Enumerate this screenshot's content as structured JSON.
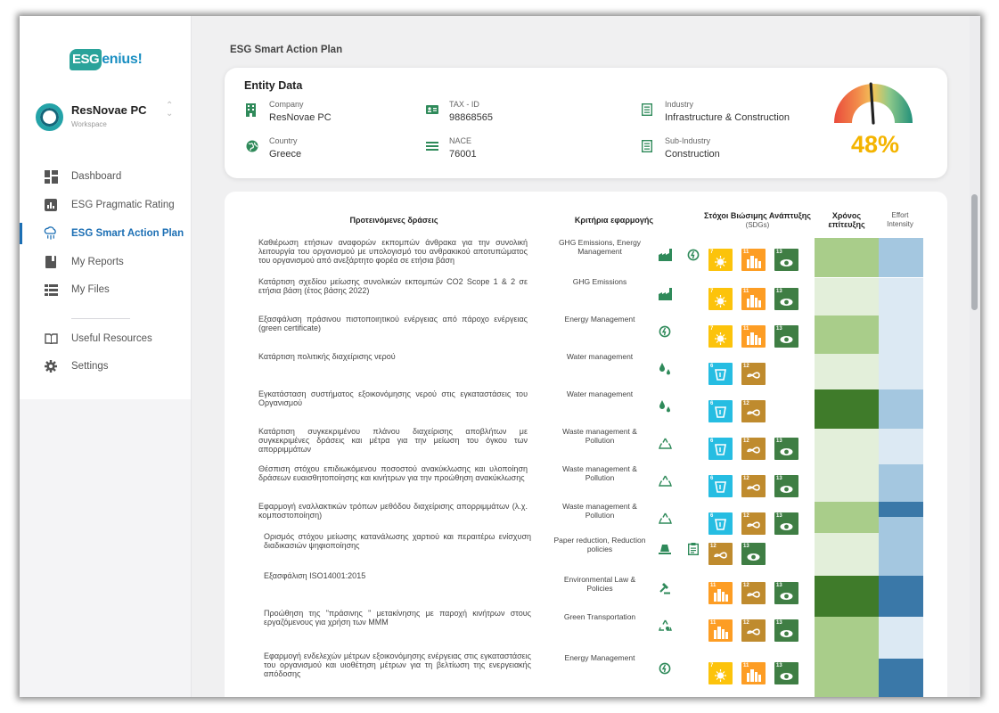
{
  "brand": {
    "logo_badge": "ESG",
    "logo_rest": "enius!"
  },
  "workspace": {
    "name": "ResNovae PC",
    "sub": "Workspace"
  },
  "nav": [
    {
      "label": "Dashboard",
      "icon": "dashboard-icon"
    },
    {
      "label": "ESG Pragmatic Rating",
      "icon": "bar-chart-icon"
    },
    {
      "label": "ESG Smart Action Plan",
      "icon": "cloud-plan-icon",
      "active": true
    },
    {
      "label": "My Reports",
      "icon": "report-icon"
    },
    {
      "label": "My Files",
      "icon": "files-icon"
    },
    {
      "label": "Useful Resources",
      "icon": "book-icon"
    },
    {
      "label": "Settings",
      "icon": "gear-icon"
    }
  ],
  "page_title": "ESG Smart Action Plan",
  "entity": {
    "title": "Entity Data",
    "fields": [
      {
        "key": "Company",
        "value": "ResNovae PC",
        "icon": "building-icon"
      },
      {
        "key": "TAX - ID",
        "value": "98868565",
        "icon": "id-card-icon"
      },
      {
        "key": "Industry",
        "value": "Infrastructure & Construction",
        "icon": "list-icon"
      },
      {
        "key": "Country",
        "value": "Greece",
        "icon": "globe-icon"
      },
      {
        "key": "NACE",
        "value": "76001",
        "icon": "menu-icon"
      },
      {
        "key": "Sub-Industry",
        "value": "Construction",
        "icon": "list-icon"
      }
    ],
    "score_percent": "48%",
    "score_value": 48
  },
  "table": {
    "headers": {
      "actions": "Προτεινόμενες δράσεις",
      "criteria": "Κριτήρια εφαρμογής",
      "sdgs": "Στόχοι Βιώσιμης Ανάπτυξης",
      "sdgs_sub": "(SDGs)",
      "time": "Χρόνος επίτευξης",
      "effort": "Effort Intensity"
    },
    "rows": [
      {
        "action": "Καθιέρωση ετήσιων αναφορών εκπομπών άνθρακα για την συνολική λειτουργία του οργανισμού με υπολογισμό του ανθρακικού αποτυπώματος του οργανισμού από ανεξάρτητο φορέα σε ετήσια βάση",
        "criteria": "GHG Emissions, Energy Management",
        "icons": [
          "factory-icon",
          "energy-icon"
        ],
        "sdgs": [
          7,
          11,
          13
        ],
        "time_color": "#a9cd8a",
        "effort_color": "#a4c7e0"
      },
      {
        "action": "Κατάρτιση σχεδίου μείωσης συνολικών εκπομπών CO2 Scope 1 & 2 σε ετήσια βάση (έτος βάσης 2022)",
        "criteria": "GHG Emissions",
        "icons": [
          "factory-icon"
        ],
        "sdgs": [
          7,
          11,
          13
        ],
        "time_color": "#e3efda",
        "effort_color": "#dce9f3"
      },
      {
        "action": "Εξασφάλιση πράσινου πιστοποιητικού ενέργειας από πάροχο ενέργειας (green certificate)",
        "criteria": "Energy Management",
        "icons": [
          "energy-icon"
        ],
        "sdgs": [
          7,
          11,
          13
        ],
        "time_color": "#a9cd8a",
        "effort_color": "#dce9f3"
      },
      {
        "action": "Κατάρτιση πολιτικής διαχείρισης νερού",
        "criteria": "Water management",
        "icons": [
          "water-icon"
        ],
        "sdgs": [
          6,
          12
        ],
        "time_color": "#e3efda",
        "effort_color": "#dce9f3"
      },
      {
        "action": "Εγκατάσταση συστήματος εξοικονόμησης νερού στις εγκαταστάσεις του Οργανισμού",
        "criteria": "Water management",
        "icons": [
          "water-icon"
        ],
        "sdgs": [
          6,
          12
        ],
        "time_color": "#3f7b2a",
        "effort_color": "#a4c7e0"
      },
      {
        "action": "Κατάρτιση συγκεκριμένου πλάνου διαχείρισης αποβλήτων με συγκεκριμένες δράσεις και μέτρα για την μείωση του όγκου των απορριμμάτων",
        "criteria": "Waste management & Pollution",
        "icons": [
          "recycle-icon"
        ],
        "sdgs": [
          6,
          12,
          13
        ],
        "time_color": "#e3efda",
        "effort_color": "#dce9f3"
      },
      {
        "action": "Θέσπιση στόχου επιδιωκόμενου ποσοστού ανακύκλωσης και υλοποίηση δράσεων ευαισθητοποίησης και κινήτρων για την προώθηση ανακύκλωσης",
        "criteria": "Waste management & Pollution",
        "icons": [
          "recycle-icon"
        ],
        "sdgs": [
          6,
          12,
          13
        ],
        "time_color": "#e3efda",
        "effort_color": "#a4c7e0"
      },
      {
        "action": "Εφαρμογή εναλλακτικών τρόπων μεθόδου διαχείρισης απορριμμάτων (λ.χ. κομποστοποίηση)",
        "criteria": "Waste management & Pollution",
        "icons": [
          "recycle-icon"
        ],
        "sdgs": [
          6,
          12,
          13
        ],
        "time_color": "#a9cd8a",
        "effort_color": "#3a78a8"
      },
      {
        "action": "Ορισμός στόχου μείωσης κατανάλωσης χαρτιού και περαιτέρω ενίσχυση διαδικασιών ψηφιοποίησης",
        "criteria": "Paper reduction, Reduction policies",
        "icons": [
          "tree-icon",
          "clipboard-icon"
        ],
        "sdgs": [
          12,
          13
        ],
        "time_color": "#e3efda",
        "effort_color": "#a4c7e0"
      },
      {
        "action": "Εξασφάλιση ISO14001:2015",
        "criteria": "Environmental Law & Policies",
        "icons": [
          "gavel-icon"
        ],
        "sdgs": [
          11,
          12,
          13
        ],
        "time_color": "#3f7b2a",
        "effort_color": "#3a78a8"
      },
      {
        "action": "Προώθηση της \"πράσινης \" μετακίνησης με παροχή κινήτρων στους εργαζόμενους για χρήση των ΜΜΜ",
        "criteria": "Green Transportation",
        "icons": [
          "green-recycle-icon"
        ],
        "sdgs": [
          11,
          12,
          13
        ],
        "time_color": "#a9cd8a",
        "effort_color": "#dce9f3"
      },
      {
        "action": "Εφαρμογή ενδελεχών μέτρων εξοικονόμησης ενέργειας στις εγκαταστάσεις του οργανισμού και υιοθέτηση μέτρων για τη βελτίωση της ενεργειακής απόδοσης",
        "criteria": "Energy Management",
        "icons": [
          "energy-icon"
        ],
        "sdgs": [
          7,
          11,
          13
        ],
        "time_color": "#a9cd8a",
        "effort_color": "#3a78a8"
      }
    ]
  },
  "sdg_colors": {
    "6": "#26bde2",
    "7": "#fcc30b",
    "11": "#fd9d24",
    "12": "#bf8b2e",
    "13": "#3f7e44"
  }
}
